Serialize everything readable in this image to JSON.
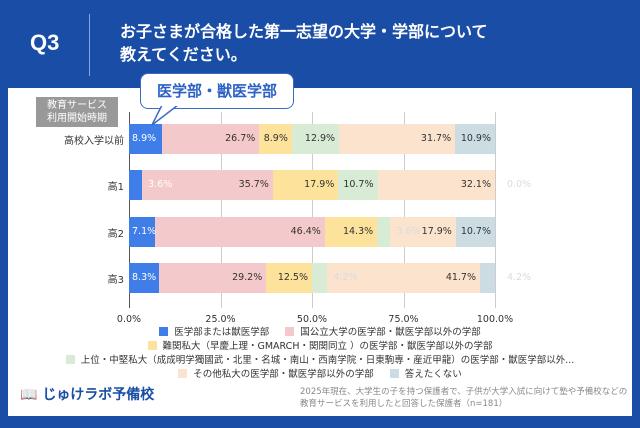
{
  "header": {
    "q": "Q3",
    "title_line1": "お子さまが合格した第一志望の大学・学部について",
    "title_line2": "教えてください。"
  },
  "callout": "医学部・獣医学部",
  "axis_title": [
    "教育サービス",
    "利用開始時期"
  ],
  "colors": {
    "background": "#1a4da6"
  },
  "chart_data": {
    "type": "stacked-horizontal-bar",
    "categories": [
      "高校入学以前",
      "高1",
      "高2",
      "高3"
    ],
    "xlim": [
      0,
      100
    ],
    "xticks": [
      "0.0%",
      "25.0%",
      "50.0%",
      "75.0%",
      "100.0%"
    ],
    "grid": true,
    "legend_position": "bottom",
    "series": [
      {
        "name": "医学部または獣医学部",
        "color": "#3f7ee8",
        "values": [
          8.9,
          3.6,
          7.1,
          8.3
        ]
      },
      {
        "name": "国公立大学の医学部・獣医学部以外の学部",
        "color": "#f3c9cb",
        "values": [
          26.7,
          35.7,
          46.4,
          29.2
        ]
      },
      {
        "name": "難関私大（早慶上理・GMARCH・関関同立 ）の医学部・獣医学部以外の学部",
        "color": "#fde29b",
        "values": [
          8.9,
          17.9,
          14.3,
          12.5
        ]
      },
      {
        "name": "上位・中堅私大（成成明学獨國武・北里・名城・南山・西南学院・日東駒専・産近甲龍）の医学部・獣医学部以外...",
        "color": "#d8ecd5",
        "values": [
          12.9,
          10.7,
          3.6,
          4.2
        ]
      },
      {
        "name": "その他私大の医学部・獣医学部以外の学部",
        "color": "#fbe3cd",
        "values": [
          31.7,
          32.1,
          17.9,
          41.7
        ]
      },
      {
        "name": "答えたくない",
        "color": "#cbdde2",
        "values": [
          10.9,
          0.0,
          10.7,
          4.2
        ]
      }
    ]
  },
  "footer": {
    "logo": "じゅけラボ予備校",
    "note_line1": "2025年現在、大学生の子を持つ保護者で、子供が大学入試に向けて塾や予備校などの",
    "note_line2": "教育サービスを利用したと回答した保護者（n=181）"
  }
}
